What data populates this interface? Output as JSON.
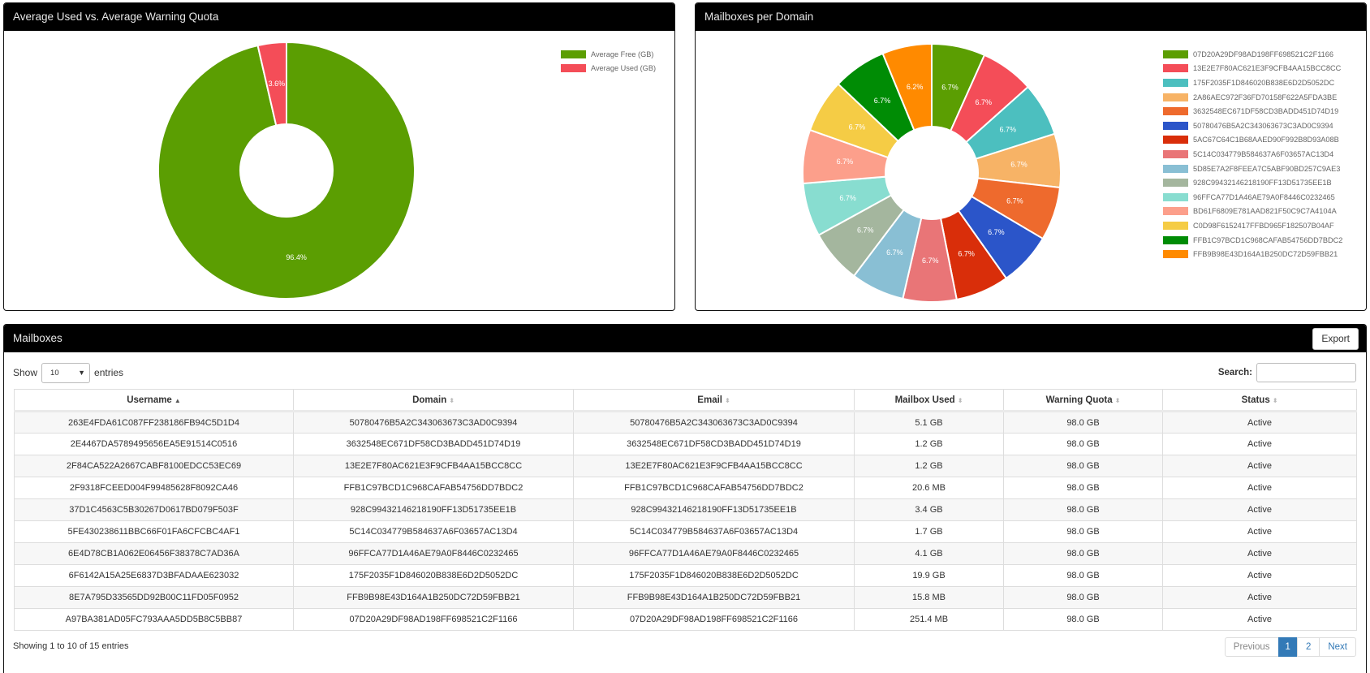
{
  "usage_panel": {
    "title": "Average Used vs. Average Warning Quota",
    "chart_data": {
      "type": "pie",
      "style": "doughnut",
      "labels": [
        "Average Free (GB)",
        "Average Used (GB)"
      ],
      "values": [
        96.4,
        3.6
      ],
      "value_labels": [
        "96.4%",
        "3.6%"
      ],
      "colors": [
        "#5b9e02",
        "#f44d58"
      ],
      "legend_position": "top-right"
    }
  },
  "domains_panel": {
    "title": "Mailboxes per Domain",
    "chart_data": {
      "type": "pie",
      "style": "doughnut",
      "labels": [
        "07D20A29DF98AD198FF698521C2F1166",
        "13E2E7F80AC621E3F9CFB4AA15BCC8CC",
        "175F2035F1D846020B838E6D2D5052DC",
        "2A86AEC972F36FD70158F622A5FDA3BE",
        "3632548EC671DF58CD3BADD451D74D19",
        "50780476B5A2C343063673C3AD0C9394",
        "5AC67C64C1B68AAED90F992B8D93A08B",
        "5C14C034779B584637A6F03657AC13D4",
        "5D85E7A2F8FEEA7C5ABF90BD257C9AE3",
        "928C99432146218190FF13D51735EE1B",
        "96FFCA77D1A46AE79A0F8446C0232465",
        "BD61F6809E781AAD821F50C9C7A4104A",
        "C0D98F6152417FFBD965F182507B04AF",
        "FFB1C97BCD1C968CAFAB54756DD7BDC2",
        "FFB9B98E43D164A1B250DC72D59FBB21"
      ],
      "values": [
        6.7,
        6.7,
        6.7,
        6.7,
        6.7,
        6.7,
        6.7,
        6.7,
        6.7,
        6.7,
        6.7,
        6.7,
        6.7,
        6.7,
        6.2
      ],
      "value_labels": [
        "6.7%",
        "6.7%",
        "6.7%",
        "6.7%",
        "6.7%",
        "6.7%",
        "6.7%",
        "6.7%",
        "6.7%",
        "6.7%",
        "6.7%",
        "6.7%",
        "6.7%",
        "6.7%",
        "6.2%"
      ],
      "colors": [
        "#5b9e02",
        "#f44d58",
        "#4cbfbf",
        "#f7b366",
        "#ee6a2d",
        "#2b55c9",
        "#d92e0a",
        "#e97577",
        "#89bfd4",
        "#a4b69e",
        "#88ddd0",
        "#fc9f8b",
        "#f5cc45",
        "#008c05",
        "#ff8a00"
      ],
      "legend_position": "right"
    }
  },
  "mailboxes_panel": {
    "title": "Mailboxes",
    "export_label": "Export",
    "show_label": "Show",
    "page_size": "10",
    "entries_label": "entries",
    "search_label": "Search:",
    "search_value": "",
    "columns": [
      "Username",
      "Domain",
      "Email",
      "Mailbox Used",
      "Warning Quota",
      "Status"
    ],
    "sorted_column": "Username",
    "sort_direction": "ascending",
    "rows": [
      [
        "263E4FDA61C087FF238186FB94C5D1D4",
        "50780476B5A2C343063673C3AD0C9394",
        "50780476B5A2C343063673C3AD0C9394",
        "5.1 GB",
        "98.0 GB",
        "Active"
      ],
      [
        "2E4467DA5789495656EA5E91514C0516",
        "3632548EC671DF58CD3BADD451D74D19",
        "3632548EC671DF58CD3BADD451D74D19",
        "1.2 GB",
        "98.0 GB",
        "Active"
      ],
      [
        "2F84CA522A2667CABF8100EDCC53EC69",
        "13E2E7F80AC621E3F9CFB4AA15BCC8CC",
        "13E2E7F80AC621E3F9CFB4AA15BCC8CC",
        "1.2 GB",
        "98.0 GB",
        "Active"
      ],
      [
        "2F9318FCEED004F99485628F8092CA46",
        "FFB1C97BCD1C968CAFAB54756DD7BDC2",
        "FFB1C97BCD1C968CAFAB54756DD7BDC2",
        "20.6 MB",
        "98.0 GB",
        "Active"
      ],
      [
        "37D1C4563C5B30267D0617BD079F503F",
        "928C99432146218190FF13D51735EE1B",
        "928C99432146218190FF13D51735EE1B",
        "3.4 GB",
        "98.0 GB",
        "Active"
      ],
      [
        "5FE430238611BBC66F01FA6CFCBC4AF1",
        "5C14C034779B584637A6F03657AC13D4",
        "5C14C034779B584637A6F03657AC13D4",
        "1.7 GB",
        "98.0 GB",
        "Active"
      ],
      [
        "6E4D78CB1A062E06456F38378C7AD36A",
        "96FFCA77D1A46AE79A0F8446C0232465",
        "96FFCA77D1A46AE79A0F8446C0232465",
        "4.1 GB",
        "98.0 GB",
        "Active"
      ],
      [
        "6F6142A15A25E6837D3BFADAAE623032",
        "175F2035F1D846020B838E6D2D5052DC",
        "175F2035F1D846020B838E6D2D5052DC",
        "19.9 GB",
        "98.0 GB",
        "Active"
      ],
      [
        "8E7A795D33565DD92B00C11FD05F0952",
        "FFB9B98E43D164A1B250DC72D59FBB21",
        "FFB9B98E43D164A1B250DC72D59FBB21",
        "15.8 MB",
        "98.0 GB",
        "Active"
      ],
      [
        "A97BA381AD05FC793AAA5DD5B8C5BB87",
        "07D20A29DF98AD198FF698521C2F1166",
        "07D20A29DF98AD198FF698521C2F1166",
        "251.4 MB",
        "98.0 GB",
        "Active"
      ]
    ],
    "info_text": "Showing 1 to 10 of 15 entries",
    "pagination": {
      "previous": "Previous",
      "pages": [
        "1",
        "2"
      ],
      "current": "1",
      "next": "Next"
    }
  }
}
